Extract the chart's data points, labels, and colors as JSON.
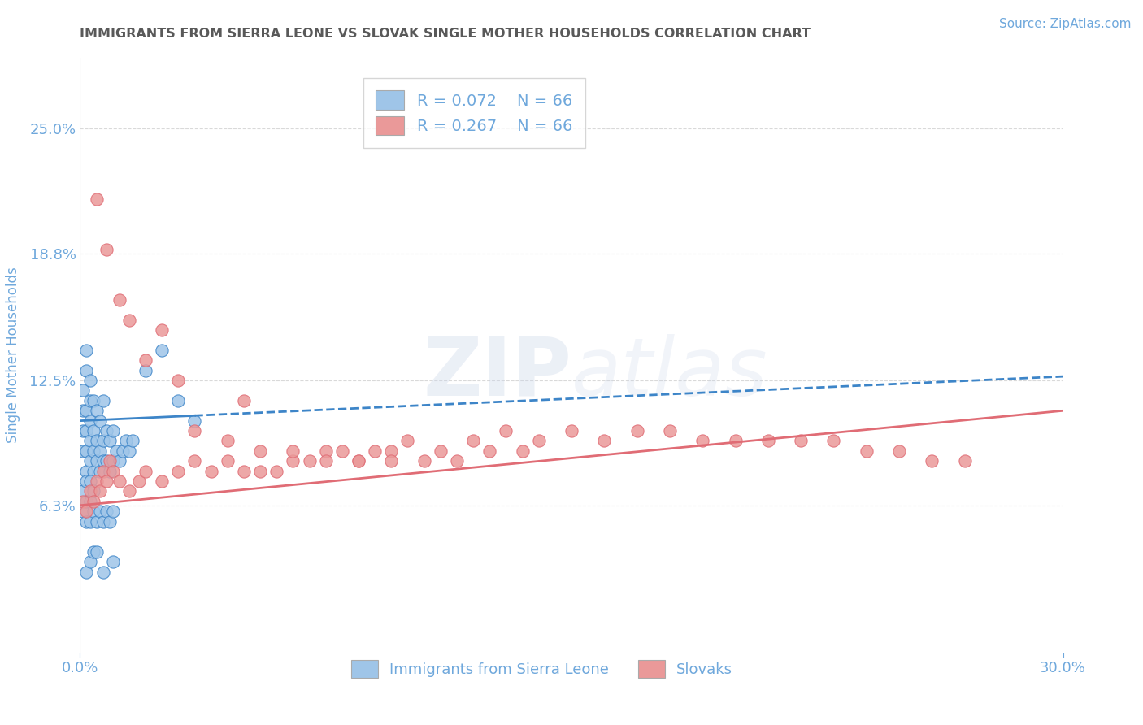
{
  "title": "IMMIGRANTS FROM SIERRA LEONE VS SLOVAK SINGLE MOTHER HOUSEHOLDS CORRELATION CHART",
  "source": "Source: ZipAtlas.com",
  "ylabel": "Single Mother Households",
  "xlim": [
    0.0,
    0.3
  ],
  "ylim": [
    -0.01,
    0.285
  ],
  "ytick_labels": [
    "6.3%",
    "12.5%",
    "18.8%",
    "25.0%"
  ],
  "ytick_positions": [
    0.063,
    0.125,
    0.188,
    0.25
  ],
  "legend_r1": "R = 0.072",
  "legend_n1": "N = 66",
  "legend_r2": "R = 0.267",
  "legend_n2": "N = 66",
  "blue_color": "#9fc5e8",
  "pink_color": "#ea9999",
  "blue_line_color": "#3d85c8",
  "pink_line_color": "#e06c75",
  "title_color": "#595959",
  "source_color": "#6fa8dc",
  "axis_label_color": "#6fa8dc",
  "tick_color": "#6fa8dc",
  "grid_color": "#d9d9d9",
  "watermark_color": "#c9d4e8",
  "blue_trend_x0": 0.0,
  "blue_trend_y0": 0.105,
  "blue_trend_x1": 0.3,
  "blue_trend_y1": 0.127,
  "blue_trend_solid_end": 0.035,
  "pink_trend_x0": 0.0,
  "pink_trend_y0": 0.063,
  "pink_trend_x1": 0.3,
  "pink_trend_y1": 0.11,
  "sierra_leone_x": [
    0.001,
    0.001,
    0.001,
    0.001,
    0.002,
    0.002,
    0.002,
    0.002,
    0.002,
    0.002,
    0.003,
    0.003,
    0.003,
    0.003,
    0.003,
    0.004,
    0.004,
    0.004,
    0.004,
    0.005,
    0.005,
    0.005,
    0.006,
    0.006,
    0.006,
    0.007,
    0.007,
    0.007,
    0.008,
    0.008,
    0.009,
    0.009,
    0.01,
    0.01,
    0.011,
    0.012,
    0.013,
    0.014,
    0.015,
    0.016,
    0.001,
    0.001,
    0.002,
    0.002,
    0.002,
    0.003,
    0.003,
    0.003,
    0.004,
    0.004,
    0.005,
    0.006,
    0.007,
    0.008,
    0.009,
    0.01,
    0.02,
    0.025,
    0.03,
    0.035,
    0.002,
    0.003,
    0.004,
    0.005,
    0.007,
    0.01
  ],
  "sierra_leone_y": [
    0.09,
    0.1,
    0.11,
    0.12,
    0.08,
    0.09,
    0.1,
    0.11,
    0.13,
    0.14,
    0.085,
    0.095,
    0.105,
    0.115,
    0.125,
    0.08,
    0.09,
    0.1,
    0.115,
    0.085,
    0.095,
    0.11,
    0.08,
    0.09,
    0.105,
    0.085,
    0.095,
    0.115,
    0.085,
    0.1,
    0.08,
    0.095,
    0.085,
    0.1,
    0.09,
    0.085,
    0.09,
    0.095,
    0.09,
    0.095,
    0.06,
    0.07,
    0.055,
    0.065,
    0.075,
    0.055,
    0.065,
    0.075,
    0.06,
    0.07,
    0.055,
    0.06,
    0.055,
    0.06,
    0.055,
    0.06,
    0.13,
    0.14,
    0.115,
    0.105,
    0.03,
    0.035,
    0.04,
    0.04,
    0.03,
    0.035
  ],
  "slovaks_x": [
    0.001,
    0.002,
    0.003,
    0.004,
    0.005,
    0.006,
    0.007,
    0.008,
    0.009,
    0.01,
    0.012,
    0.015,
    0.018,
    0.02,
    0.025,
    0.03,
    0.035,
    0.04,
    0.045,
    0.05,
    0.055,
    0.06,
    0.065,
    0.07,
    0.075,
    0.08,
    0.085,
    0.09,
    0.095,
    0.1,
    0.11,
    0.12,
    0.13,
    0.14,
    0.15,
    0.16,
    0.17,
    0.18,
    0.19,
    0.2,
    0.21,
    0.22,
    0.23,
    0.24,
    0.25,
    0.26,
    0.27,
    0.015,
    0.025,
    0.035,
    0.045,
    0.055,
    0.065,
    0.075,
    0.085,
    0.095,
    0.105,
    0.115,
    0.125,
    0.135,
    0.005,
    0.008,
    0.012,
    0.02,
    0.03,
    0.05
  ],
  "slovaks_y": [
    0.065,
    0.06,
    0.07,
    0.065,
    0.075,
    0.07,
    0.08,
    0.075,
    0.085,
    0.08,
    0.075,
    0.07,
    0.075,
    0.08,
    0.075,
    0.08,
    0.085,
    0.08,
    0.085,
    0.08,
    0.08,
    0.08,
    0.085,
    0.085,
    0.09,
    0.09,
    0.085,
    0.09,
    0.09,
    0.095,
    0.09,
    0.095,
    0.1,
    0.095,
    0.1,
    0.095,
    0.1,
    0.1,
    0.095,
    0.095,
    0.095,
    0.095,
    0.095,
    0.09,
    0.09,
    0.085,
    0.085,
    0.155,
    0.15,
    0.1,
    0.095,
    0.09,
    0.09,
    0.085,
    0.085,
    0.085,
    0.085,
    0.085,
    0.09,
    0.09,
    0.215,
    0.19,
    0.165,
    0.135,
    0.125,
    0.115
  ]
}
